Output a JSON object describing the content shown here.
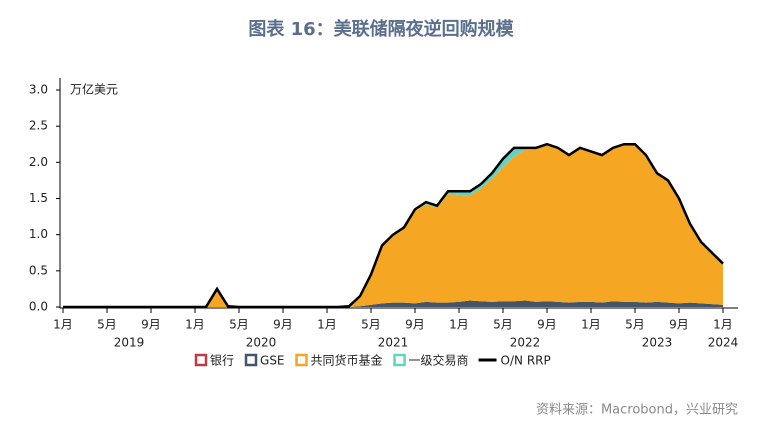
{
  "chart_data": {
    "type": "area",
    "stacked": true,
    "title": "图表 16：美联储隔夜逆回购规模",
    "y_unit_label": "万亿美元",
    "source": "资料来源：Macrobond，兴业研究",
    "x": [
      "2019-01",
      "2019-02",
      "2019-03",
      "2019-04",
      "2019-05",
      "2019-06",
      "2019-07",
      "2019-08",
      "2019-09",
      "2019-10",
      "2019-11",
      "2019-12",
      "2020-01",
      "2020-02",
      "2020-03",
      "2020-04",
      "2020-05",
      "2020-06",
      "2020-07",
      "2020-08",
      "2020-09",
      "2020-10",
      "2020-11",
      "2020-12",
      "2021-01",
      "2021-02",
      "2021-03",
      "2021-04",
      "2021-05",
      "2021-06",
      "2021-07",
      "2021-08",
      "2021-09",
      "2021-10",
      "2021-11",
      "2021-12",
      "2022-01",
      "2022-02",
      "2022-03",
      "2022-04",
      "2022-05",
      "2022-06",
      "2022-07",
      "2022-08",
      "2022-09",
      "2022-10",
      "2022-11",
      "2022-12",
      "2023-01",
      "2023-02",
      "2023-03",
      "2023-04",
      "2023-05",
      "2023-06",
      "2023-07",
      "2023-08",
      "2023-09",
      "2023-10",
      "2023-11",
      "2023-12",
      "2024-01"
    ],
    "xlim": [
      "2019-01",
      "2024-02"
    ],
    "xticks": [
      {
        "value": "2019-01",
        "label": "1月"
      },
      {
        "value": "2019-05",
        "label": "5月"
      },
      {
        "value": "2019-09",
        "label": "9月"
      },
      {
        "value": "2020-01",
        "label": "1月"
      },
      {
        "value": "2020-05",
        "label": "5月"
      },
      {
        "value": "2020-09",
        "label": "9月"
      },
      {
        "value": "2021-01",
        "label": "1月"
      },
      {
        "value": "2021-05",
        "label": "5月"
      },
      {
        "value": "2021-09",
        "label": "9月"
      },
      {
        "value": "2022-01",
        "label": "1月"
      },
      {
        "value": "2022-05",
        "label": "5月"
      },
      {
        "value": "2022-09",
        "label": "9月"
      },
      {
        "value": "2023-01",
        "label": "1月"
      },
      {
        "value": "2023-05",
        "label": "5月"
      },
      {
        "value": "2023-09",
        "label": "9月"
      },
      {
        "value": "2024-01",
        "label": "1月"
      }
    ],
    "year_labels": [
      "2019",
      "2020",
      "2021",
      "2022",
      "2023",
      "2024"
    ],
    "ylim": [
      0,
      3
    ],
    "yticks": [
      {
        "value": 0,
        "label": "0.0"
      },
      {
        "value": 0.5,
        "label": "0.5"
      },
      {
        "value": 1,
        "label": "1.0"
      },
      {
        "value": 1.5,
        "label": "1.5"
      },
      {
        "value": 2,
        "label": "2.0"
      },
      {
        "value": 2.5,
        "label": "2.5"
      },
      {
        "value": 3,
        "label": "3.0"
      }
    ],
    "series": [
      {
        "name": "银行",
        "kind": "area",
        "color": "#c0394b",
        "values": [
          0,
          0,
          0,
          0,
          0,
          0,
          0,
          0,
          0,
          0,
          0,
          0,
          0,
          0,
          0,
          0,
          0,
          0,
          0,
          0,
          0,
          0,
          0,
          0,
          0,
          0,
          0,
          0,
          0,
          0,
          0,
          0,
          0,
          0,
          0,
          0,
          0,
          0,
          0,
          0,
          0,
          0,
          0,
          0,
          0,
          0,
          0,
          0,
          0,
          0,
          0,
          0,
          0,
          0,
          0,
          0,
          0,
          0,
          0,
          0,
          0
        ]
      },
      {
        "name": "GSE",
        "kind": "area",
        "color": "#44546a",
        "values": [
          0,
          0,
          0,
          0,
          0,
          0,
          0,
          0,
          0,
          0,
          0,
          0,
          0,
          0,
          0,
          0,
          0,
          0,
          0,
          0,
          0,
          0,
          0,
          0,
          0,
          0,
          0,
          0.01,
          0.03,
          0.05,
          0.06,
          0.06,
          0.05,
          0.07,
          0.06,
          0.06,
          0.07,
          0.09,
          0.08,
          0.07,
          0.08,
          0.08,
          0.09,
          0.07,
          0.08,
          0.07,
          0.06,
          0.07,
          0.07,
          0.06,
          0.08,
          0.07,
          0.07,
          0.06,
          0.07,
          0.06,
          0.05,
          0.06,
          0.05,
          0.04,
          0.03
        ]
      },
      {
        "name": "共同货币基金",
        "kind": "area",
        "color": "#f5a623",
        "values": [
          0,
          0,
          0,
          0,
          0,
          0,
          0,
          0,
          0,
          0,
          0,
          0,
          0,
          0,
          0.25,
          0.01,
          0,
          0,
          0,
          0,
          0,
          0,
          0,
          0,
          0,
          0,
          0.01,
          0.14,
          0.42,
          0.8,
          0.94,
          1.04,
          1.28,
          1.35,
          1.31,
          1.5,
          1.48,
          1.45,
          1.56,
          1.7,
          1.85,
          2,
          2.08,
          2.11,
          2.16,
          2.13,
          2.04,
          2.13,
          2.08,
          2.04,
          2.12,
          2.18,
          2.18,
          2.04,
          1.78,
          1.69,
          1.45,
          1.09,
          0.85,
          0.71,
          0.57
        ]
      },
      {
        "name": "一级交易商",
        "kind": "area",
        "color": "#5fd3c8",
        "values": [
          0,
          0,
          0,
          0,
          0,
          0,
          0,
          0,
          0,
          0,
          0,
          0,
          0,
          0,
          0,
          0,
          0,
          0,
          0,
          0,
          0,
          0,
          0,
          0,
          0,
          0,
          0,
          0,
          0,
          0,
          0,
          0,
          0.02,
          0.03,
          0.03,
          0.04,
          0.05,
          0.06,
          0.06,
          0.08,
          0.12,
          0.12,
          0.03,
          0.02,
          0.01,
          0,
          0,
          0,
          0,
          0,
          0,
          0,
          0,
          0,
          0,
          0,
          0,
          0,
          0,
          0,
          0
        ]
      },
      {
        "name": "O/N RRP",
        "kind": "line",
        "color": "#000000",
        "values": [
          0,
          0,
          0,
          0,
          0,
          0,
          0,
          0,
          0,
          0,
          0,
          0,
          0,
          0,
          0.25,
          0.01,
          0,
          0,
          0,
          0,
          0,
          0,
          0,
          0,
          0,
          0,
          0.01,
          0.15,
          0.45,
          0.85,
          1,
          1.1,
          1.35,
          1.45,
          1.4,
          1.6,
          1.6,
          1.6,
          1.7,
          1.85,
          2.05,
          2.2,
          2.2,
          2.2,
          2.25,
          2.2,
          2.1,
          2.2,
          2.15,
          2.1,
          2.2,
          2.25,
          2.25,
          2.1,
          1.85,
          1.75,
          1.5,
          1.15,
          0.9,
          0.75,
          0.6
        ]
      }
    ]
  }
}
